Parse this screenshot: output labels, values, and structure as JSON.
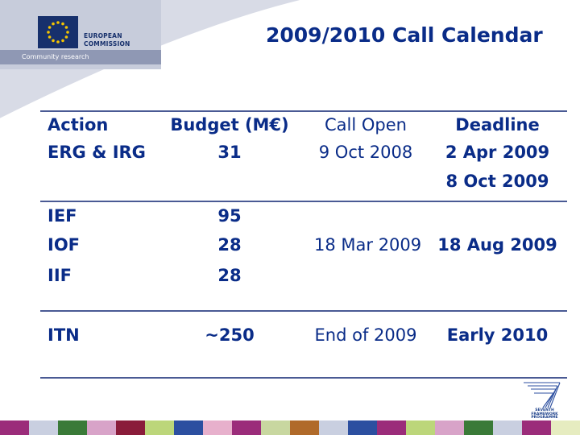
{
  "logo": {
    "line1": "EUROPEAN",
    "line2": "COMMISSION",
    "subtitle": "Community research"
  },
  "slide": {
    "title": "2009/2010 Call Calendar"
  },
  "table": {
    "headers": {
      "action": "Action",
      "budget": "Budget (M€)",
      "open": "Call Open",
      "deadline": "Deadline"
    },
    "rows": {
      "erg": {
        "action": "ERG & IRG",
        "budget": "31",
        "open": "9 Oct 2008",
        "deadline1": "2 Apr 2009",
        "deadline2": "8 Oct 2009"
      },
      "ief": {
        "action": "IEF",
        "budget": "95"
      },
      "iof": {
        "action": "IOF",
        "budget": "28",
        "open": "18 Mar 2009",
        "deadline": "18 Aug 2009"
      },
      "iif": {
        "action": "IIF",
        "budget": "28"
      },
      "itn": {
        "action": "ITN",
        "budget": "~250",
        "open": "End of 2009",
        "deadline": "Early 2010"
      }
    }
  },
  "fp7": {
    "line1": "SEVENTH FRAMEWORK",
    "line2": "PROGRAMME"
  },
  "colors": {
    "text": "#0a2c88",
    "rule": "#4a5a94",
    "header_band": "#d8dbe6",
    "eu_flag": "#17306c",
    "eu_stars": "#f5c400",
    "bottom_bar": [
      "#9b2c7a",
      "#c9cfe0",
      "#3a7a38",
      "#d8a3c8",
      "#8a1c3a",
      "#bcd67a",
      "#2c4fa0",
      "#e7b0cc",
      "#9b2c7a",
      "#c8d7a0",
      "#b06a2a",
      "#c9cfe0",
      "#2c4fa0",
      "#9b2c7a",
      "#bcd67a",
      "#d8a3c8",
      "#3a7a38",
      "#c9cfe0",
      "#9b2c7a",
      "#e6ecc0"
    ]
  }
}
